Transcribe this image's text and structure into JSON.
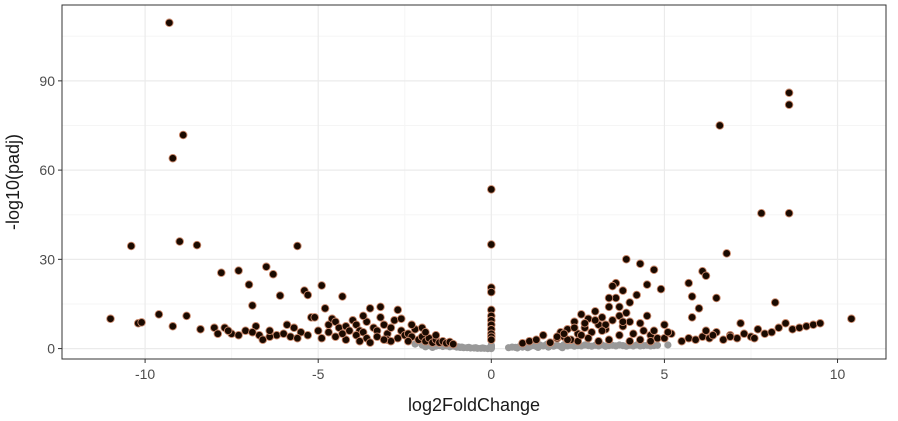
{
  "chart_data": {
    "type": "scatter",
    "xlabel": "log2FoldChange",
    "ylabel": "-log10(padj)",
    "xlim": [
      -12.4,
      11.4
    ],
    "ylim": [
      -3.5,
      115.5
    ],
    "x_ticks": [
      -10,
      -5,
      0,
      5,
      10
    ],
    "x_tick_labels": [
      "-10",
      "-5",
      "0",
      "5",
      "10"
    ],
    "y_ticks": [
      0,
      30,
      60,
      90
    ],
    "y_tick_labels": [
      "0",
      "30",
      "60",
      "90"
    ],
    "grid": true,
    "colors": {
      "panel_bg": "#ffffff",
      "panel_border": "#333333",
      "grid_major": "#ebebeb",
      "grid_minor": "#f5f5f5",
      "significant_fill": "#1a0a00",
      "significant_stroke": "#c9876a",
      "nonsignificant": "#999999"
    },
    "series": [
      {
        "color": "#999999",
        "points": [
          [
            -2.2,
            1.5
          ],
          [
            -2.0,
            1.2
          ],
          [
            -1.8,
            1.0
          ],
          [
            -1.6,
            0.8
          ],
          [
            -1.4,
            0.7
          ],
          [
            -1.2,
            0.6
          ],
          [
            -1.0,
            0.5
          ],
          [
            -0.9,
            0.4
          ],
          [
            -0.8,
            0.3
          ],
          [
            -0.7,
            0.3
          ],
          [
            -0.6,
            0.2
          ],
          [
            -0.5,
            0.2
          ],
          [
            -0.4,
            0.1
          ],
          [
            -0.3,
            0.1
          ],
          [
            -0.2,
            0.1
          ],
          [
            -0.1,
            0.0
          ],
          [
            -1.5,
            1.0
          ],
          [
            -1.3,
            0.9
          ],
          [
            -1.1,
            0.8
          ],
          [
            -0.95,
            0.6
          ],
          [
            -0.85,
            0.5
          ],
          [
            -0.65,
            0.4
          ],
          [
            -0.45,
            0.3
          ],
          [
            -0.25,
            0.2
          ],
          [
            -1.7,
            0.4
          ],
          [
            -1.9,
            0.6
          ],
          [
            0.0,
            0.0
          ],
          [
            0.0,
            0.2
          ],
          [
            0.0,
            0.4
          ],
          [
            0.0,
            0.6
          ],
          [
            0.0,
            0.8
          ],
          [
            0.0,
            1.0
          ],
          [
            0.0,
            1.2
          ],
          [
            0.5,
            0.3
          ],
          [
            0.6,
            0.5
          ],
          [
            0.7,
            0.4
          ],
          [
            0.8,
            0.6
          ],
          [
            0.9,
            0.5
          ],
          [
            1.0,
            0.8
          ],
          [
            1.1,
            0.6
          ],
          [
            1.2,
            1.0
          ],
          [
            1.3,
            0.7
          ],
          [
            1.4,
            1.2
          ],
          [
            1.5,
            0.9
          ],
          [
            1.6,
            1.4
          ],
          [
            1.7,
            1.0
          ],
          [
            1.8,
            0.8
          ],
          [
            1.9,
            1.1
          ],
          [
            2.0,
            0.7
          ],
          [
            2.1,
            1.3
          ],
          [
            2.2,
            0.9
          ],
          [
            2.3,
            1.1
          ],
          [
            2.4,
            0.8
          ],
          [
            2.5,
            1.0
          ],
          [
            2.6,
            0.9
          ],
          [
            2.7,
            1.2
          ],
          [
            2.8,
            1.0
          ],
          [
            2.9,
            0.8
          ],
          [
            3.0,
            1.1
          ],
          [
            3.1,
            0.9
          ],
          [
            3.2,
            1.2
          ],
          [
            3.3,
            0.8
          ],
          [
            3.4,
            1.0
          ],
          [
            3.5,
            1.1
          ],
          [
            3.6,
            0.9
          ],
          [
            3.7,
            1.2
          ],
          [
            3.8,
            1.0
          ],
          [
            3.9,
            0.8
          ],
          [
            4.0,
            1.1
          ],
          [
            4.1,
            0.9
          ],
          [
            4.2,
            1.2
          ],
          [
            4.3,
            0.9
          ],
          [
            4.4,
            1.0
          ],
          [
            4.5,
            1.1
          ],
          [
            4.6,
            0.9
          ],
          [
            4.7,
            1.0
          ],
          [
            4.8,
            1.1
          ],
          [
            5.1,
            1.2
          ],
          [
            1.05,
            0.3
          ],
          [
            1.35,
            0.4
          ],
          [
            1.65,
            0.5
          ],
          [
            0.75,
            0.2
          ],
          [
            2.05,
            0.3
          ]
        ]
      },
      {
        "color": "#1a0a00",
        "points": [
          [
            -9.3,
            109.5
          ],
          [
            -8.9,
            71.8
          ],
          [
            -9.2,
            64.0
          ],
          [
            -9.0,
            36.0
          ],
          [
            -8.5,
            34.8
          ],
          [
            -10.4,
            34.5
          ],
          [
            -9.6,
            11.5
          ],
          [
            -8.8,
            11.0
          ],
          [
            -9.2,
            7.5
          ],
          [
            -10.2,
            8.5
          ],
          [
            -10.1,
            8.8
          ],
          [
            -11.0,
            10.0
          ],
          [
            -7.8,
            25.5
          ],
          [
            -7.3,
            26.2
          ],
          [
            -7.0,
            21.5
          ],
          [
            -6.5,
            27.5
          ],
          [
            -6.3,
            25.0
          ],
          [
            -6.1,
            17.8
          ],
          [
            -5.6,
            34.5
          ],
          [
            -5.4,
            19.5
          ],
          [
            -5.3,
            18.0
          ],
          [
            -4.9,
            21.2
          ],
          [
            -4.8,
            13.5
          ],
          [
            -4.3,
            17.5
          ],
          [
            -3.5,
            13.5
          ],
          [
            -3.2,
            14.0
          ],
          [
            -2.7,
            13.0
          ],
          [
            -8.4,
            6.5
          ],
          [
            -8.0,
            7.0
          ],
          [
            -7.9,
            5.0
          ],
          [
            -7.7,
            7.0
          ],
          [
            -7.5,
            5.0
          ],
          [
            -7.1,
            6.0
          ],
          [
            -6.9,
            14.5
          ],
          [
            -6.8,
            7.5
          ],
          [
            -6.7,
            4.5
          ],
          [
            -6.6,
            3.0
          ],
          [
            -6.2,
            4.5
          ],
          [
            -6.0,
            5.0
          ],
          [
            -5.8,
            4.0
          ],
          [
            -5.7,
            7.0
          ],
          [
            -5.5,
            5.5
          ],
          [
            -5.2,
            10.5
          ],
          [
            -5.1,
            10.5
          ],
          [
            -5.0,
            6.0
          ],
          [
            -4.7,
            8.0
          ],
          [
            -4.6,
            10.0
          ],
          [
            -4.5,
            9.0
          ],
          [
            -4.4,
            7.0
          ],
          [
            -4.2,
            7.5
          ],
          [
            -4.1,
            6.0
          ],
          [
            -4.0,
            9.5
          ],
          [
            -3.9,
            8.0
          ],
          [
            -3.8,
            6.0
          ],
          [
            -3.7,
            5.5
          ],
          [
            -3.6,
            9.0
          ],
          [
            -3.4,
            7.0
          ],
          [
            -3.3,
            6.0
          ],
          [
            -3.1,
            8.0
          ],
          [
            -3.0,
            5.0
          ],
          [
            -2.9,
            7.0
          ],
          [
            -2.8,
            9.5
          ],
          [
            -2.6,
            6.0
          ],
          [
            -2.5,
            4.5
          ],
          [
            -2.4,
            5.0
          ],
          [
            -2.3,
            4.0
          ],
          [
            -2.2,
            6.5
          ],
          [
            -2.1,
            3.0
          ],
          [
            -2.0,
            4.0
          ],
          [
            -1.9,
            2.5
          ],
          [
            -1.8,
            3.5
          ],
          [
            -1.7,
            2.0
          ],
          [
            -1.6,
            3.0
          ],
          [
            -1.5,
            2.0
          ],
          [
            -1.4,
            2.5
          ],
          [
            -1.3,
            1.8
          ],
          [
            -1.2,
            2.2
          ],
          [
            -1.1,
            1.5
          ],
          [
            -4.9,
            3.5
          ],
          [
            -4.5,
            4.0
          ],
          [
            -4.2,
            3.0
          ],
          [
            -3.9,
            4.5
          ],
          [
            -3.6,
            3.5
          ],
          [
            -3.3,
            4.0
          ],
          [
            -3.0,
            3.0
          ],
          [
            -2.7,
            3.5
          ],
          [
            -2.4,
            2.5
          ],
          [
            -5.3,
            4.5
          ],
          [
            -5.6,
            3.5
          ],
          [
            -6.4,
            4.0
          ],
          [
            -6.9,
            5.5
          ],
          [
            -7.3,
            4.5
          ],
          [
            -7.6,
            6.0
          ],
          [
            -3.8,
            2.5
          ],
          [
            -3.5,
            2.0
          ],
          [
            -2.9,
            2.5
          ],
          [
            -4.3,
            5.0
          ],
          [
            -4.7,
            5.5
          ],
          [
            -3.2,
            10.5
          ],
          [
            -3.7,
            11.0
          ],
          [
            -2.6,
            10.0
          ],
          [
            -2.3,
            8.0
          ],
          [
            -2.0,
            7.0
          ],
          [
            -1.9,
            5.5
          ],
          [
            -1.6,
            4.5
          ],
          [
            -5.9,
            8.0
          ],
          [
            -6.4,
            6.0
          ],
          [
            -3.1,
            3.0
          ],
          [
            0.0,
            53.5
          ],
          [
            0.0,
            35.0
          ],
          [
            0.0,
            20.5
          ],
          [
            0.0,
            19.0
          ],
          [
            0.0,
            13.0
          ],
          [
            0.0,
            11.0
          ],
          [
            0.0,
            9.5
          ],
          [
            0.0,
            8.0
          ],
          [
            0.0,
            6.5
          ],
          [
            0.0,
            5.0
          ],
          [
            0.0,
            4.0
          ],
          [
            0.0,
            3.0
          ],
          [
            0.9,
            1.8
          ],
          [
            1.1,
            2.5
          ],
          [
            1.3,
            3.0
          ],
          [
            1.5,
            4.5
          ],
          [
            1.7,
            2.0
          ],
          [
            1.9,
            3.5
          ],
          [
            2.0,
            5.5
          ],
          [
            2.1,
            4.0
          ],
          [
            2.2,
            6.5
          ],
          [
            2.3,
            3.0
          ],
          [
            2.4,
            9.0
          ],
          [
            2.5,
            5.0
          ],
          [
            2.6,
            11.5
          ],
          [
            2.7,
            7.0
          ],
          [
            2.8,
            10.0
          ],
          [
            2.9,
            5.5
          ],
          [
            3.0,
            12.5
          ],
          [
            3.1,
            8.0
          ],
          [
            3.2,
            10.5
          ],
          [
            3.3,
            6.5
          ],
          [
            3.4,
            14.0
          ],
          [
            3.5,
            9.5
          ],
          [
            3.6,
            17.0
          ],
          [
            3.7,
            11.0
          ],
          [
            3.8,
            7.5
          ],
          [
            3.9,
            12.0
          ],
          [
            4.0,
            9.0
          ],
          [
            4.1,
            5.0
          ],
          [
            4.2,
            18.0
          ],
          [
            4.3,
            8.5
          ],
          [
            4.4,
            6.0
          ],
          [
            4.5,
            11.0
          ],
          [
            4.6,
            4.5
          ],
          [
            4.7,
            6.0
          ],
          [
            4.8,
            3.5
          ],
          [
            3.6,
            22.0
          ],
          [
            3.5,
            21.0
          ],
          [
            3.4,
            17.0
          ],
          [
            3.9,
            30.0
          ],
          [
            4.3,
            28.5
          ],
          [
            4.5,
            21.5
          ],
          [
            4.7,
            26.5
          ],
          [
            4.9,
            20.0
          ],
          [
            4.0,
            15.5
          ],
          [
            3.7,
            14.0
          ],
          [
            3.8,
            19.5
          ],
          [
            1.9,
            4.0
          ],
          [
            2.2,
            3.0
          ],
          [
            2.5,
            2.5
          ],
          [
            2.8,
            3.5
          ],
          [
            3.1,
            2.5
          ],
          [
            3.4,
            3.0
          ],
          [
            3.7,
            4.5
          ],
          [
            4.0,
            2.5
          ],
          [
            4.3,
            3.0
          ],
          [
            4.6,
            2.5
          ],
          [
            5.0,
            3.5
          ],
          [
            5.2,
            5.0
          ],
          [
            2.4,
            7.0
          ],
          [
            2.7,
            8.5
          ],
          [
            3.0,
            9.5
          ],
          [
            3.3,
            8.0
          ],
          [
            2.1,
            5.0
          ],
          [
            2.6,
            4.5
          ],
          [
            3.2,
            6.0
          ],
          [
            3.8,
            9.0
          ],
          [
            5.0,
            8.0
          ],
          [
            5.1,
            5.5
          ],
          [
            5.5,
            2.5
          ],
          [
            5.7,
            3.5
          ],
          [
            5.9,
            3.0
          ],
          [
            6.1,
            4.0
          ],
          [
            6.3,
            3.5
          ],
          [
            6.5,
            5.5
          ],
          [
            6.7,
            3.0
          ],
          [
            6.9,
            4.5
          ],
          [
            7.1,
            3.5
          ],
          [
            7.3,
            5.0
          ],
          [
            7.5,
            4.0
          ],
          [
            7.7,
            6.5
          ],
          [
            7.9,
            5.0
          ],
          [
            8.1,
            5.5
          ],
          [
            8.3,
            7.0
          ],
          [
            8.5,
            8.5
          ],
          [
            8.7,
            6.5
          ],
          [
            8.9,
            7.0
          ],
          [
            9.1,
            7.5
          ],
          [
            9.3,
            8.0
          ],
          [
            9.5,
            8.5
          ],
          [
            10.4,
            10.0
          ],
          [
            5.8,
            17.5
          ],
          [
            5.7,
            22.0
          ],
          [
            6.1,
            26.0
          ],
          [
            6.2,
            24.5
          ],
          [
            6.5,
            17.0
          ],
          [
            6.0,
            13.5
          ],
          [
            5.8,
            10.5
          ],
          [
            6.2,
            6.0
          ],
          [
            6.8,
            32.0
          ],
          [
            6.6,
            75.0
          ],
          [
            7.8,
            45.5
          ],
          [
            8.6,
            86.0
          ],
          [
            8.6,
            82.0
          ],
          [
            8.6,
            45.5
          ],
          [
            8.2,
            15.5
          ],
          [
            7.2,
            8.5
          ],
          [
            6.9,
            4.0
          ],
          [
            7.6,
            3.5
          ],
          [
            6.4,
            4.5
          ]
        ]
      }
    ]
  }
}
